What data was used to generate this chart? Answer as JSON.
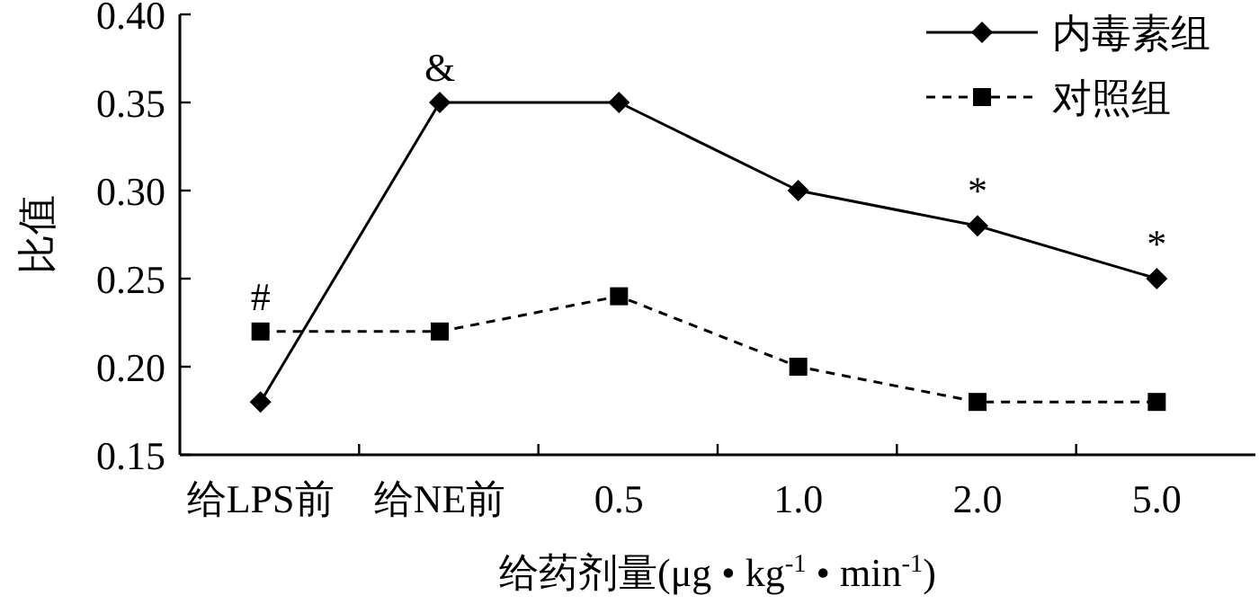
{
  "chart_data": {
    "type": "line",
    "xlabel": "给药剂量(μg • kg$^{-1}$ • min$^{-1}$)",
    "ylabel": "比值",
    "categories": [
      "给LPS前",
      "给NE前",
      "0.5",
      "1.0",
      "2.0",
      "5.0"
    ],
    "series": [
      {
        "name": "内毒素组",
        "color": "#000000",
        "marker": "diamond",
        "line_style": "solid",
        "values": [
          0.18,
          0.35,
          0.35,
          0.3,
          0.28,
          0.25
        ]
      },
      {
        "name": "对照组",
        "color": "#000000",
        "marker": "square",
        "line_style": "dashed",
        "values": [
          0.22,
          0.22,
          0.24,
          0.2,
          0.18,
          0.18
        ]
      }
    ],
    "ylim": [
      0.15,
      0.4
    ],
    "yticks": [
      {
        "value": 0.15,
        "label": "0.15"
      },
      {
        "value": 0.2,
        "label": "0.20"
      },
      {
        "value": 0.25,
        "label": "0.25"
      },
      {
        "value": 0.3,
        "label": "0.30"
      },
      {
        "value": 0.35,
        "label": "0.35"
      },
      {
        "value": 0.4,
        "label": "0.40"
      }
    ],
    "annotations": [
      {
        "text": "#",
        "x": "给LPS前",
        "y": 0.22
      },
      {
        "text": "&",
        "x": "给NE前",
        "y": 0.35
      },
      {
        "text": "*",
        "x": "2.0",
        "y": 0.28
      },
      {
        "text": "*",
        "x": "5.0",
        "y": 0.25
      }
    ],
    "grid": false,
    "legend": "top right"
  }
}
